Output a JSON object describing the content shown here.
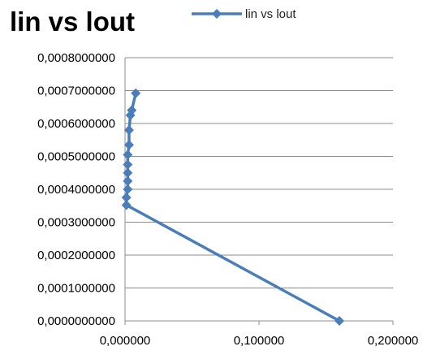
{
  "chart_data": {
    "type": "scatter",
    "title": "lin vs lout",
    "xlabel": "",
    "ylabel": "",
    "xlim": [
      0,
      0.2
    ],
    "ylim": [
      0,
      0.0008
    ],
    "x_ticks": [
      "0,000000",
      "0,100000",
      "0,200000"
    ],
    "y_ticks": [
      "0,0000000000",
      "0,0001000000",
      "0,0002000000",
      "0,0003000000",
      "0,0004000000",
      "0,0005000000",
      "0,0006000000",
      "0,0007000000",
      "0,0008000000"
    ],
    "grid": "horizontal",
    "legend": "top",
    "series": [
      {
        "name": "lin vs lout",
        "color": "#4a7ebb",
        "marker": "diamond",
        "points": [
          {
            "x": 0.16,
            "y": 0.0
          },
          {
            "x": 0.001,
            "y": 0.000352
          },
          {
            "x": 0.001,
            "y": 0.000375
          },
          {
            "x": 0.002,
            "y": 0.0004
          },
          {
            "x": 0.002,
            "y": 0.000425
          },
          {
            "x": 0.002,
            "y": 0.00045
          },
          {
            "x": 0.002,
            "y": 0.000475
          },
          {
            "x": 0.002,
            "y": 0.000505
          },
          {
            "x": 0.003,
            "y": 0.000535
          },
          {
            "x": 0.003,
            "y": 0.00058
          },
          {
            "x": 0.004,
            "y": 0.000625
          },
          {
            "x": 0.005,
            "y": 0.00064
          },
          {
            "x": 0.008,
            "y": 0.000692
          }
        ]
      }
    ]
  }
}
